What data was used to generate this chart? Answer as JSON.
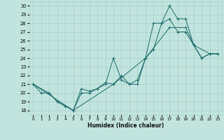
{
  "xlabel": "Humidex (Indice chaleur)",
  "xlim": [
    -0.5,
    23.5
  ],
  "ylim": [
    17.5,
    30.5
  ],
  "xticks": [
    0,
    1,
    2,
    3,
    4,
    5,
    6,
    7,
    8,
    9,
    10,
    11,
    12,
    13,
    14,
    15,
    16,
    17,
    18,
    19,
    20,
    21,
    22,
    23
  ],
  "yticks": [
    18,
    19,
    20,
    21,
    22,
    23,
    24,
    25,
    26,
    27,
    28,
    29,
    30
  ],
  "bg_color": "#c2e4de",
  "grid_color": "#a8cec8",
  "line_color": "#1a6b6b",
  "line1_x": [
    0,
    1,
    2,
    3,
    4,
    5,
    6,
    7,
    8,
    9,
    10,
    11,
    12,
    13,
    14,
    15,
    16,
    17,
    18,
    19,
    20,
    21,
    22,
    23
  ],
  "line1_y": [
    21,
    20,
    20,
    19,
    18.5,
    18,
    20,
    20,
    20.5,
    21,
    24,
    21.5,
    21,
    21,
    24,
    28,
    28,
    30,
    28.5,
    28.5,
    25.5,
    24,
    24.5,
    24.5
  ],
  "line2_x": [
    0,
    2,
    3,
    4,
    5,
    6,
    7,
    8,
    9,
    10,
    11,
    12,
    13,
    14,
    15,
    16,
    17,
    18,
    19,
    20,
    21,
    22,
    23
  ],
  "line2_y": [
    21,
    20,
    19,
    18.5,
    18,
    20.5,
    20.2,
    20.5,
    21.2,
    21,
    22,
    21,
    21.5,
    24,
    25,
    28,
    28.5,
    27,
    27,
    25.5,
    24,
    24.5,
    24.5
  ],
  "line3_x": [
    0,
    5,
    10,
    14,
    17,
    19,
    20,
    22,
    23
  ],
  "line3_y": [
    21,
    18,
    21,
    24,
    27.5,
    27.5,
    25.5,
    24.5,
    24.5
  ]
}
